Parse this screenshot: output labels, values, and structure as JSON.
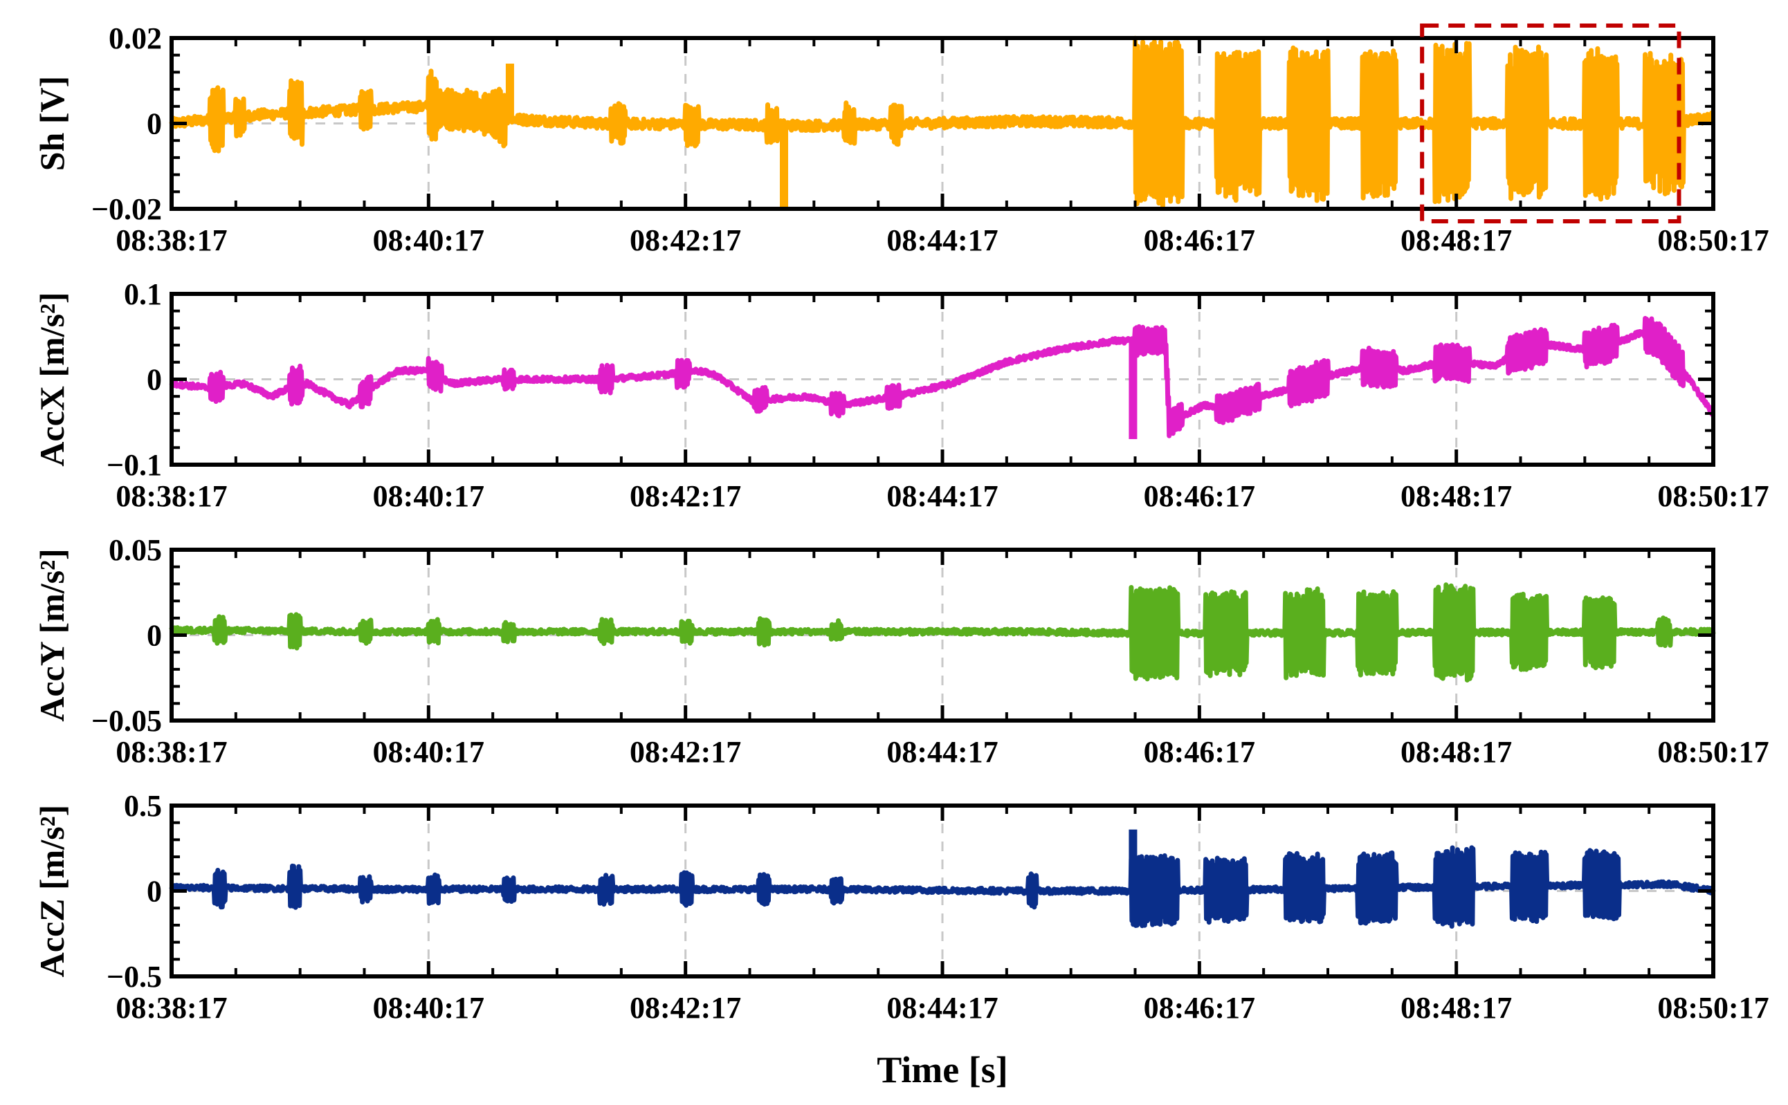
{
  "chart_data": {
    "type": "line",
    "xlabel": "Time [s]",
    "x_ticks": [
      "08:38:17",
      "08:40:17",
      "08:42:17",
      "08:44:17",
      "08:46:17",
      "08:48:17",
      "08:50:17"
    ],
    "x_range_seconds": [
      0,
      720
    ],
    "grid": true,
    "highlight_box": {
      "x_start_seconds": 584,
      "x_end_seconds": 704,
      "color": "#c00000",
      "style": "dashed"
    },
    "panels": [
      {
        "name": "Sh",
        "ylabel": "Sh [V]",
        "color": "#FFAA00",
        "ylim": [
          -0.02,
          0.02
        ],
        "y_ticks": [
          "0.02",
          "0",
          "−0.02"
        ],
        "y_tick_values": [
          0.02,
          0,
          -0.02
        ],
        "series": {
          "baseline": [
            [
              0,
              0.0
            ],
            [
              40,
              0.002
            ],
            [
              80,
              0.003
            ],
            [
              120,
              0.004
            ],
            [
              160,
              0.001
            ],
            [
              200,
              0.0
            ],
            [
              300,
              -0.0005
            ],
            [
              400,
              0.0005
            ],
            [
              480,
              0.0
            ],
            [
              520,
              0.0
            ],
            [
              640,
              0.0
            ],
            [
              700,
              0.0
            ],
            [
              720,
              0.0015
            ]
          ],
          "bursts": [
            {
              "t0": 18,
              "t1": 24,
              "amp": 0.007
            },
            {
              "t0": 30,
              "t1": 34,
              "amp": 0.004
            },
            {
              "t0": 55,
              "t1": 61,
              "amp": 0.007
            },
            {
              "t0": 88,
              "t1": 93,
              "amp": 0.004
            },
            {
              "t0": 120,
              "t1": 124,
              "amp": 0.008
            },
            {
              "t0": 124,
              "t1": 150,
              "amp": 0.004
            },
            {
              "t0": 150,
              "t1": 156,
              "amp": 0.006
            },
            {
              "t0": 205,
              "t1": 212,
              "amp": 0.004
            },
            {
              "t0": 240,
              "t1": 246,
              "amp": 0.004
            },
            {
              "t0": 278,
              "t1": 283,
              "amp": 0.004
            },
            {
              "t0": 314,
              "t1": 319,
              "amp": 0.004
            },
            {
              "t0": 336,
              "t1": 341,
              "amp": 0.004
            },
            {
              "t0": 450,
              "t1": 472,
              "amp": 0.019
            },
            {
              "t0": 488,
              "t1": 508,
              "amp": 0.017
            },
            {
              "t0": 522,
              "t1": 540,
              "amp": 0.017
            },
            {
              "t0": 556,
              "t1": 572,
              "amp": 0.017
            },
            {
              "t0": 590,
              "t1": 606,
              "amp": 0.018
            },
            {
              "t0": 624,
              "t1": 642,
              "amp": 0.017
            },
            {
              "t0": 660,
              "t1": 675,
              "amp": 0.017
            },
            {
              "t0": 688,
              "t1": 706,
              "amp": 0.016
            }
          ],
          "spikes": [
            [
              286,
              -0.02
            ],
            [
              158,
              0.014
            ]
          ],
          "noise": 0.0012
        }
      },
      {
        "name": "AccX",
        "ylabel": "AccX [m/s²]",
        "color": "#E020C8",
        "ylim": [
          -0.1,
          0.1
        ],
        "y_ticks": [
          "0.1",
          "0",
          "−0.1"
        ],
        "y_tick_values": [
          0.1,
          0,
          -0.1
        ],
        "series": {
          "baseline": [
            [
              0,
              -0.005
            ],
            [
              20,
              -0.01
            ],
            [
              40,
              -0.005
            ],
            [
              55,
              -0.02
            ],
            [
              65,
              -0.01
            ],
            [
              75,
              -0.005
            ],
            [
              88,
              -0.02
            ],
            [
              98,
              -0.03
            ],
            [
              110,
              -0.01
            ],
            [
              125,
              0.01
            ],
            [
              140,
              0.01
            ],
            [
              155,
              -0.005
            ],
            [
              180,
              0.0
            ],
            [
              210,
              0.0
            ],
            [
              240,
              0.0
            ],
            [
              270,
              0.005
            ],
            [
              290,
              0.01
            ],
            [
              300,
              0.005
            ],
            [
              310,
              -0.01
            ],
            [
              320,
              -0.025
            ],
            [
              350,
              -0.02
            ],
            [
              370,
              -0.03
            ],
            [
              400,
              -0.02
            ],
            [
              430,
              -0.005
            ],
            [
              460,
              0.02
            ],
            [
              490,
              0.035
            ],
            [
              520,
              0.045
            ],
            [
              548,
              0.045
            ],
            [
              550,
              -0.05
            ],
            [
              560,
              -0.04
            ],
            [
              570,
              -0.03
            ],
            [
              580,
              -0.035
            ],
            [
              600,
              -0.02
            ],
            [
              620,
              -0.01
            ],
            [
              640,
              0.005
            ],
            [
              660,
              0.015
            ],
            [
              680,
              0.01
            ],
            [
              700,
              0.02
            ],
            [
              710,
              0.02
            ],
            [
              730,
              0.015
            ],
            [
              740,
              0.03
            ],
            [
              760,
              0.04
            ],
            [
              780,
              0.035
            ],
            [
              800,
              0.045
            ],
            [
              810,
              0.055
            ],
            [
              820,
              0.045
            ],
            [
              830,
              0.02
            ],
            [
              840,
              -0.01
            ],
            [
              850,
              -0.04
            ]
          ],
          "time_scale": 0.847,
          "bursts": [
            {
              "t0": 18,
              "t1": 24,
              "amp": 0.015
            },
            {
              "t0": 55,
              "t1": 61,
              "amp": 0.02
            },
            {
              "t0": 88,
              "t1": 93,
              "amp": 0.015
            },
            {
              "t0": 120,
              "t1": 126,
              "amp": 0.015
            },
            {
              "t0": 155,
              "t1": 160,
              "amp": 0.01
            },
            {
              "t0": 200,
              "t1": 206,
              "amp": 0.015
            },
            {
              "t0": 236,
              "t1": 242,
              "amp": 0.015
            },
            {
              "t0": 272,
              "t1": 278,
              "amp": 0.012
            },
            {
              "t0": 308,
              "t1": 314,
              "amp": 0.012
            },
            {
              "t0": 334,
              "t1": 340,
              "amp": 0.012
            },
            {
              "t0": 450,
              "t1": 472,
              "amp": 0.015
            },
            {
              "t0": 488,
              "t1": 508,
              "amp": 0.015
            },
            {
              "t0": 522,
              "t1": 540,
              "amp": 0.02
            },
            {
              "t0": 556,
              "t1": 572,
              "amp": 0.02
            },
            {
              "t0": 590,
              "t1": 606,
              "amp": 0.02
            },
            {
              "t0": 624,
              "t1": 642,
              "amp": 0.02
            },
            {
              "t0": 660,
              "t1": 675,
              "amp": 0.02
            },
            {
              "t0": 688,
              "t1": 706,
              "amp": 0.02
            }
          ],
          "spikes": [
            [
              449,
              -0.07
            ]
          ],
          "noise": 0.003
        }
      },
      {
        "name": "AccY",
        "ylabel": "AccY [m/s²]",
        "color": "#5AAF1E",
        "ylim": [
          -0.05,
          0.05
        ],
        "y_ticks": [
          "0.05",
          "0",
          "−0.05"
        ],
        "y_tick_values": [
          0.05,
          0,
          -0.05
        ],
        "series": {
          "baseline": [
            [
              0,
              0.003
            ],
            [
              100,
              0.002
            ],
            [
              200,
              0.002
            ],
            [
              300,
              0.002
            ],
            [
              400,
              0.002
            ],
            [
              460,
              0.001
            ],
            [
              720,
              0.002
            ]
          ],
          "bursts": [
            {
              "t0": 20,
              "t1": 25,
              "amp": 0.007
            },
            {
              "t0": 55,
              "t1": 60,
              "amp": 0.01
            },
            {
              "t0": 88,
              "t1": 93,
              "amp": 0.006
            },
            {
              "t0": 120,
              "t1": 125,
              "amp": 0.006
            },
            {
              "t0": 155,
              "t1": 160,
              "amp": 0.005
            },
            {
              "t0": 200,
              "t1": 206,
              "amp": 0.006
            },
            {
              "t0": 238,
              "t1": 243,
              "amp": 0.006
            },
            {
              "t0": 274,
              "t1": 279,
              "amp": 0.007
            },
            {
              "t0": 308,
              "t1": 313,
              "amp": 0.005
            },
            {
              "t0": 448,
              "t1": 470,
              "amp": 0.026
            },
            {
              "t0": 483,
              "t1": 502,
              "amp": 0.024
            },
            {
              "t0": 520,
              "t1": 538,
              "amp": 0.025
            },
            {
              "t0": 554,
              "t1": 572,
              "amp": 0.024
            },
            {
              "t0": 590,
              "t1": 608,
              "amp": 0.027
            },
            {
              "t0": 626,
              "t1": 642,
              "amp": 0.022
            },
            {
              "t0": 660,
              "t1": 674,
              "amp": 0.02
            },
            {
              "t0": 694,
              "t1": 700,
              "amp": 0.007
            }
          ],
          "spikes": [],
          "noise": 0.0015
        }
      },
      {
        "name": "AccZ",
        "ylabel": "AccZ [m/s²]",
        "color": "#0A2E8A",
        "ylim": [
          -0.5,
          0.5
        ],
        "y_ticks": [
          "0.5",
          "0",
          "−0.5"
        ],
        "y_tick_values": [
          0.5,
          0,
          -0.5
        ],
        "series": {
          "baseline": [
            [
              0,
              0.02
            ],
            [
              100,
              0.01
            ],
            [
              200,
              0.01
            ],
            [
              300,
              0.01
            ],
            [
              400,
              0.0
            ],
            [
              450,
              0.0
            ],
            [
              700,
              0.04
            ],
            [
              720,
              0.0
            ]
          ],
          "bursts": [
            {
              "t0": 20,
              "t1": 25,
              "amp": 0.1
            },
            {
              "t0": 55,
              "t1": 60,
              "amp": 0.12
            },
            {
              "t0": 88,
              "t1": 93,
              "amp": 0.07
            },
            {
              "t0": 120,
              "t1": 125,
              "amp": 0.08
            },
            {
              "t0": 155,
              "t1": 160,
              "amp": 0.06
            },
            {
              "t0": 200,
              "t1": 206,
              "amp": 0.08
            },
            {
              "t0": 238,
              "t1": 243,
              "amp": 0.09
            },
            {
              "t0": 274,
              "t1": 279,
              "amp": 0.08
            },
            {
              "t0": 308,
              "t1": 313,
              "amp": 0.07
            },
            {
              "t0": 400,
              "t1": 404,
              "amp": 0.1
            },
            {
              "t0": 448,
              "t1": 470,
              "amp": 0.2
            },
            {
              "t0": 483,
              "t1": 502,
              "amp": 0.18
            },
            {
              "t0": 520,
              "t1": 538,
              "amp": 0.2
            },
            {
              "t0": 554,
              "t1": 572,
              "amp": 0.2
            },
            {
              "t0": 590,
              "t1": 608,
              "amp": 0.22
            },
            {
              "t0": 626,
              "t1": 642,
              "amp": 0.2
            },
            {
              "t0": 660,
              "t1": 676,
              "amp": 0.2
            }
          ],
          "spikes": [
            [
              449,
              0.36
            ]
          ],
          "noise": 0.015
        }
      }
    ]
  }
}
